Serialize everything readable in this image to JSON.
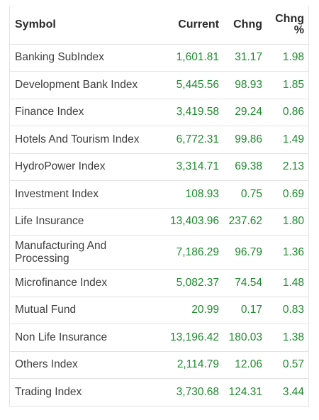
{
  "columns": {
    "symbol": "Symbol",
    "current": "Current",
    "chng": "Chng",
    "chng_pct_line1": "Chng",
    "chng_pct_line2": "%"
  },
  "rows": [
    {
      "symbol": "Banking SubIndex",
      "current": "1,601.81",
      "chng": "31.17",
      "pct": "1.98"
    },
    {
      "symbol": "Development Bank Index",
      "current": "5,445.56",
      "chng": "98.93",
      "pct": "1.85"
    },
    {
      "symbol": "Finance Index",
      "current": "3,419.58",
      "chng": "29.24",
      "pct": "0.86"
    },
    {
      "symbol": "Hotels And Tourism Index",
      "current": "6,772.31",
      "chng": "99.86",
      "pct": "1.49"
    },
    {
      "symbol": "HydroPower Index",
      "current": "3,314.71",
      "chng": "69.38",
      "pct": "2.13"
    },
    {
      "symbol": "Investment Index",
      "current": "108.93",
      "chng": "0.75",
      "pct": "0.69"
    },
    {
      "symbol": "Life Insurance",
      "current": "13,403.96",
      "chng": "237.62",
      "pct": "1.80"
    },
    {
      "symbol": "Manufacturing And Processing",
      "current": "7,186.29",
      "chng": "96.79",
      "pct": "1.36"
    },
    {
      "symbol": "Microfinance Index",
      "current": "5,082.37",
      "chng": "74.54",
      "pct": "1.48"
    },
    {
      "symbol": "Mutual Fund",
      "current": "20.99",
      "chng": "0.17",
      "pct": "0.83"
    },
    {
      "symbol": "Non Life Insurance",
      "current": "13,196.42",
      "chng": "180.03",
      "pct": "1.38"
    },
    {
      "symbol": "Others Index",
      "current": "2,114.79",
      "chng": "12.06",
      "pct": "0.57"
    },
    {
      "symbol": "Trading Index",
      "current": "3,730.68",
      "chng": "124.31",
      "pct": "3.44"
    }
  ],
  "colors": {
    "positive": "#1c8c2c",
    "text": "#3d3d3d",
    "border": "#e3e3e3"
  }
}
